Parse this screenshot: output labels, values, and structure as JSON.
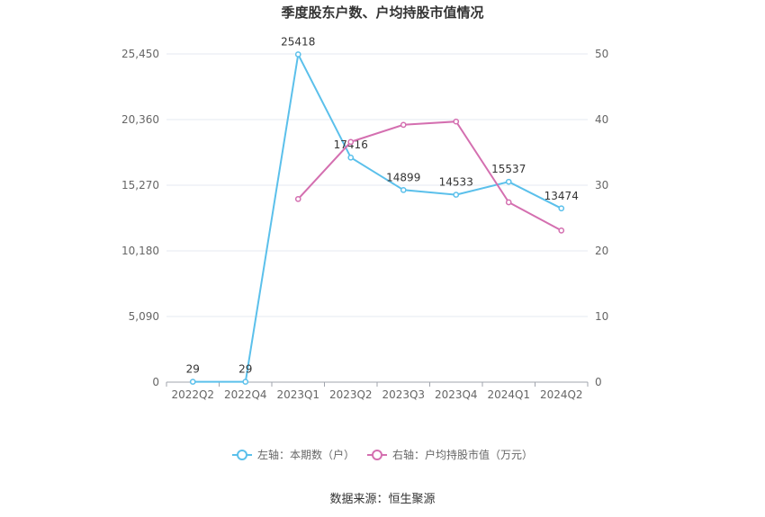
{
  "chart_data": {
    "type": "line",
    "title": "季度股东户数、户均持股市值情况",
    "categories": [
      "2022Q2",
      "2022Q4",
      "2023Q1",
      "2023Q2",
      "2023Q3",
      "2023Q4",
      "2024Q1",
      "2024Q2"
    ],
    "left_axis": {
      "ticks": [
        "0",
        "5,090",
        "10,180",
        "15,270",
        "20,360",
        "25,450"
      ],
      "ylim": [
        0,
        25450
      ]
    },
    "right_axis": {
      "ticks": [
        "0",
        "10",
        "20",
        "30",
        "40",
        "50"
      ],
      "ylim": [
        0,
        50
      ]
    },
    "grid": true,
    "legend_placement": "bottom",
    "series": [
      {
        "name": "左轴：本期数（户）",
        "axis": "left",
        "color": "#5bc0eb",
        "values": [
          29,
          29,
          25418,
          17416,
          14899,
          14533,
          15537,
          13474
        ],
        "labels": [
          "29",
          "29",
          "25418",
          "17416",
          "14899",
          "14533",
          "15537",
          "13474"
        ]
      },
      {
        "name": "右轴：户均持股市值（万元）",
        "axis": "right",
        "color": "#d46fb0",
        "values": [
          null,
          null,
          27.9,
          36.6,
          39.2,
          39.7,
          27.4,
          23.1
        ]
      }
    ],
    "source": "数据来源：恒生聚源"
  }
}
